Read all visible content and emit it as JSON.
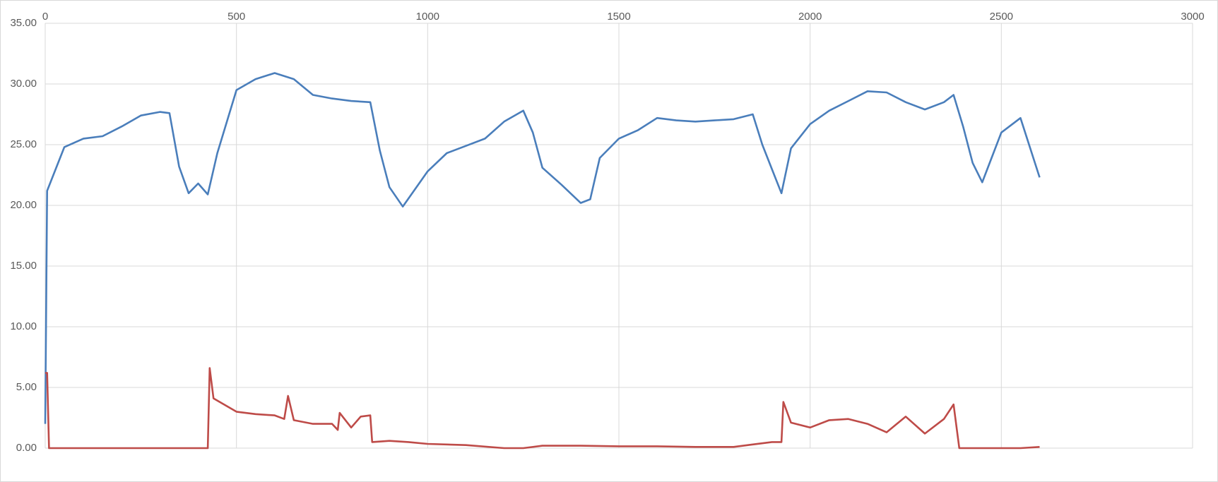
{
  "chart_data": {
    "type": "line",
    "xlim": [
      0,
      3000
    ],
    "xticks": [
      0,
      500,
      1000,
      1500,
      2000,
      2500,
      3000
    ],
    "ylim": [
      0,
      35
    ],
    "yticks": [
      {
        "value": 0,
        "label": "0.00"
      },
      {
        "value": 5,
        "label": "5.00"
      },
      {
        "value": 10,
        "label": "10.00"
      },
      {
        "value": 15,
        "label": "15.00"
      },
      {
        "value": 20,
        "label": "20.00"
      },
      {
        "value": 25,
        "label": "25.00"
      },
      {
        "value": 30,
        "label": "30.00"
      },
      {
        "value": 35,
        "label": "35.00"
      }
    ],
    "grid": true,
    "series": [
      {
        "color": "#4a7ebb",
        "x": [
          0,
          5,
          50,
          100,
          150,
          200,
          250,
          300,
          325,
          350,
          375,
          400,
          425,
          450,
          500,
          550,
          600,
          650,
          700,
          750,
          800,
          850,
          875,
          900,
          935,
          1000,
          1050,
          1100,
          1150,
          1200,
          1250,
          1275,
          1300,
          1350,
          1400,
          1425,
          1450,
          1500,
          1550,
          1600,
          1650,
          1700,
          1750,
          1800,
          1850,
          1875,
          1900,
          1925,
          1950,
          2000,
          2050,
          2100,
          2150,
          2200,
          2250,
          2300,
          2350,
          2375,
          2400,
          2425,
          2450,
          2500,
          2550,
          2600
        ],
        "values": [
          2,
          21.2,
          24.8,
          25.5,
          25.7,
          26.5,
          27.4,
          27.7,
          27.6,
          23.2,
          21.0,
          21.8,
          20.9,
          24.3,
          29.5,
          30.4,
          30.9,
          30.4,
          29.1,
          28.8,
          28.6,
          28.5,
          24.5,
          21.5,
          19.9,
          22.8,
          24.3,
          24.9,
          25.5,
          26.9,
          27.8,
          26.0,
          23.1,
          21.7,
          20.2,
          20.5,
          23.9,
          25.5,
          26.2,
          27.2,
          27.0,
          26.9,
          27.0,
          27.1,
          27.5,
          25.0,
          23.0,
          21.0,
          24.7,
          26.7,
          27.8,
          28.6,
          29.4,
          29.3,
          28.5,
          27.9,
          28.5,
          29.1,
          26.5,
          23.5,
          21.9,
          26.0,
          27.2,
          22.3
        ]
      },
      {
        "color": "#be4b48",
        "x": [
          0,
          5,
          10,
          425,
          430,
          440,
          500,
          550,
          600,
          625,
          635,
          650,
          700,
          750,
          765,
          770,
          800,
          825,
          850,
          855,
          900,
          950,
          1000,
          1100,
          1200,
          1250,
          1300,
          1400,
          1500,
          1600,
          1700,
          1800,
          1850,
          1900,
          1925,
          1930,
          1950,
          2000,
          2050,
          2100,
          2150,
          2200,
          2250,
          2300,
          2350,
          2375,
          2390,
          2450,
          2500,
          2550,
          2600
        ],
        "values": [
          6.2,
          6.2,
          0,
          0,
          6.6,
          4.1,
          3.0,
          2.8,
          2.7,
          2.4,
          4.3,
          2.3,
          2.0,
          2.0,
          1.5,
          2.9,
          1.7,
          2.6,
          2.7,
          0.5,
          0.6,
          0.5,
          0.35,
          0.25,
          0,
          0,
          0.2,
          0.2,
          0.15,
          0.15,
          0.1,
          0.1,
          0.3,
          0.5,
          0.5,
          3.8,
          2.1,
          1.7,
          2.3,
          2.4,
          2.0,
          1.3,
          2.6,
          1.2,
          2.4,
          3.6,
          0,
          0,
          0,
          0,
          0.1
        ]
      }
    ]
  }
}
